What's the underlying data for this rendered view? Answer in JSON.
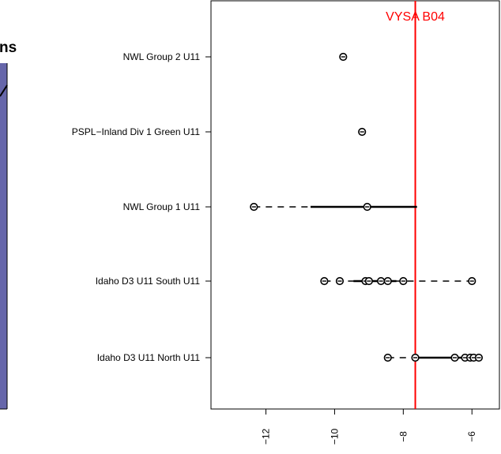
{
  "left_panel": {
    "partial_title": "ns",
    "fill_color": "#6666aa"
  },
  "chart_data": {
    "type": "scatter",
    "title": "",
    "xlabel": "",
    "ylabel": "",
    "xlim": [
      -13.6,
      -5.2
    ],
    "x_ticks": [
      -12,
      -10,
      -8,
      -6
    ],
    "x_tick_labels": [
      "−12",
      "−10",
      "−8",
      "−6"
    ],
    "categories": [
      "NWL Group 2 U11",
      "PSPL−Inland Div 1 Green U11",
      "NWL Group 1 U11",
      "Idaho D3 U11 South U11",
      "Idaho D3 U11 North U11"
    ],
    "groups": [
      {
        "label": "NWL Group 2 U11",
        "points": [
          -9.75
        ],
        "whisker": null,
        "box": null,
        "median": null
      },
      {
        "label": "PSPL−Inland Div 1 Green U11",
        "points": [
          -9.2
        ],
        "whisker": null,
        "box": null,
        "median": null
      },
      {
        "label": "NWL Group 1 U11",
        "points": [
          -12.35,
          -9.05
        ],
        "whisker": [
          -12.35,
          -7.6
        ],
        "box": [
          -10.7,
          -7.6
        ],
        "median": -9.05
      },
      {
        "label": "Idaho D3 U11 South U11",
        "points": [
          -10.3,
          -9.85,
          -9.1,
          -9.0,
          -8.65,
          -8.45,
          -8.0,
          -6.0
        ],
        "whisker": [
          -10.3,
          -6.0
        ],
        "box": [
          -9.45,
          -8.2
        ],
        "median": -8.85
      },
      {
        "label": "Idaho D3 U11 North U11",
        "points": [
          -8.45,
          -7.65,
          -6.5,
          -6.2,
          -6.05,
          -5.95,
          -5.8
        ],
        "whisker": [
          -8.45,
          -5.8
        ],
        "box": [
          -7.65,
          -6.0
        ],
        "median": -6.15
      }
    ],
    "reference_line": {
      "label": "VYSA B04",
      "x": -7.65,
      "color": "#ff0000"
    }
  }
}
